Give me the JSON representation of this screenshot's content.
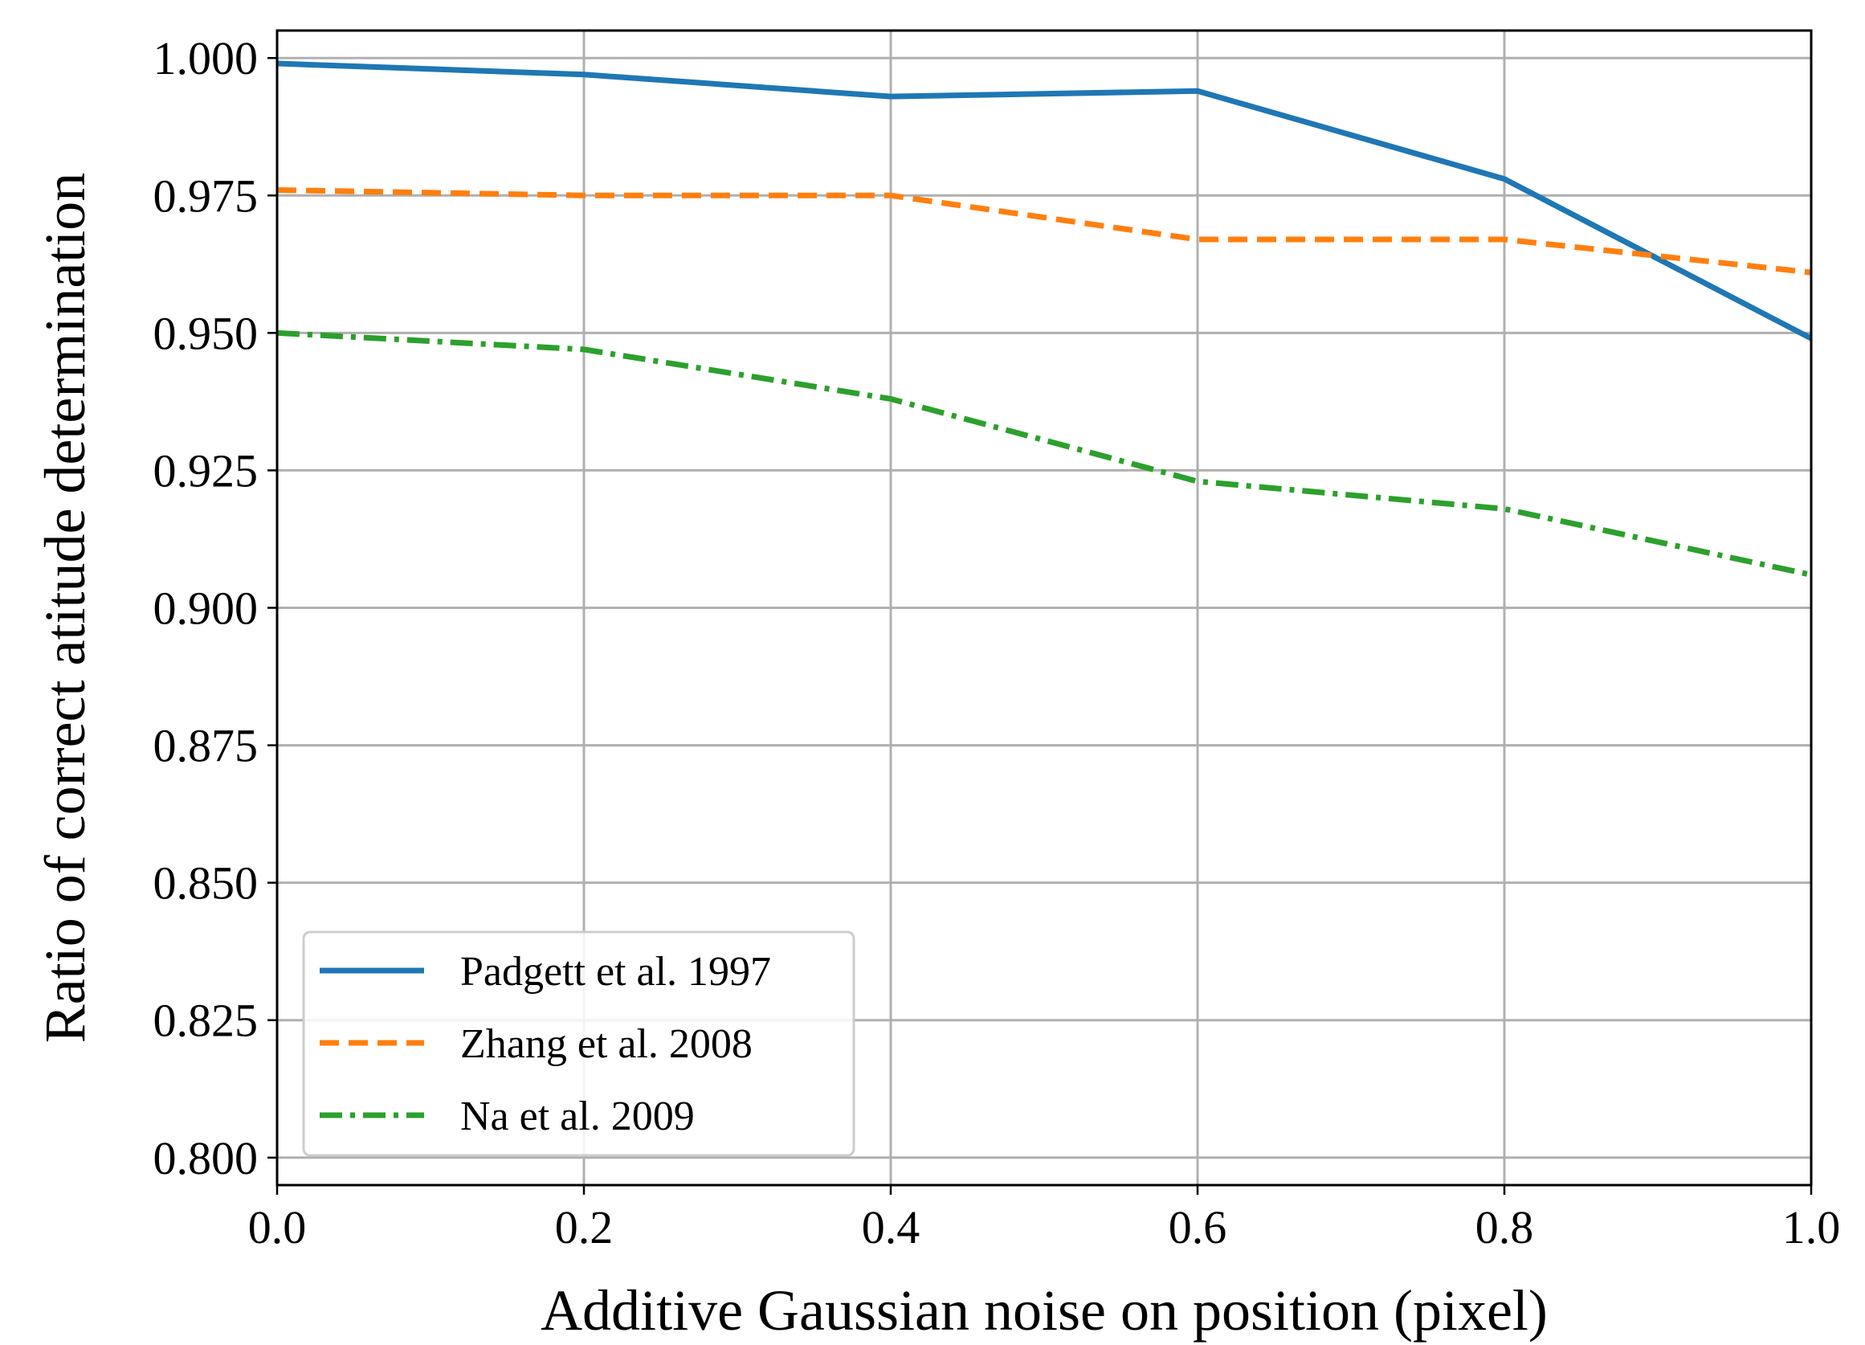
{
  "chart_data": {
    "type": "line",
    "xlabel": "Additive Gaussian noise on position (pixel)",
    "ylabel": "Ratio of correct atitude determination",
    "xlim": [
      0.0,
      1.0
    ],
    "ylim": [
      0.795,
      1.005
    ],
    "xticks": [
      0.0,
      0.2,
      0.4,
      0.6,
      0.8,
      1.0
    ],
    "xtick_labels": [
      "0.0",
      "0.2",
      "0.4",
      "0.6",
      "0.8",
      "1.0"
    ],
    "yticks": [
      0.8,
      0.825,
      0.85,
      0.875,
      0.9,
      0.925,
      0.95,
      0.975,
      1.0
    ],
    "ytick_labels": [
      "0.800",
      "0.825",
      "0.850",
      "0.875",
      "0.900",
      "0.925",
      "0.950",
      "0.975",
      "1.000"
    ],
    "grid": true,
    "legend_position": "lower-left",
    "x": [
      0.0,
      0.2,
      0.4,
      0.6,
      0.8,
      1.0
    ],
    "series": [
      {
        "name": "Padgett et al. 1997",
        "color": "#1f77b4",
        "style": "solid",
        "values": [
          0.999,
          0.997,
          0.993,
          0.994,
          0.978,
          0.949
        ]
      },
      {
        "name": "Zhang et al. 2008",
        "color": "#ff7f0e",
        "style": "dashed",
        "values": [
          0.976,
          0.975,
          0.975,
          0.967,
          0.967,
          0.961
        ]
      },
      {
        "name": "Na et al. 2009",
        "color": "#2ca02c",
        "style": "dashdot",
        "values": [
          0.95,
          0.947,
          0.938,
          0.923,
          0.918,
          0.906
        ]
      }
    ]
  }
}
